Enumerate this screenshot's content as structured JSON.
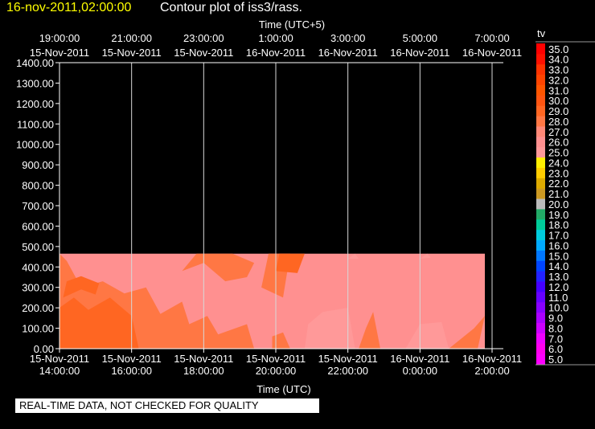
{
  "header": {
    "timestamp": "16-nov-2011,02:00:00",
    "title": "Contour plot of iss3/rass."
  },
  "footer_note": "REAL-TIME DATA, NOT CHECKED FOR QUALITY",
  "colors": {
    "background": "#000000",
    "axes": "#ffffff",
    "gridlines": "#d8d8d8",
    "header_timestamp": "#ffff00"
  },
  "chart_data": {
    "type": "heatmap",
    "title": "Contour plot of iss3/rass.",
    "top_axis_label": "Time (UTC+5)",
    "top_ticks": [
      {
        "time": "19:00:00",
        "date": "15-Nov-2011"
      },
      {
        "time": "21:00:00",
        "date": "15-Nov-2011"
      },
      {
        "time": "23:00:00",
        "date": "15-Nov-2011"
      },
      {
        "time": "1:00:00",
        "date": "16-Nov-2011"
      },
      {
        "time": "3:00:00",
        "date": "16-Nov-2011"
      },
      {
        "time": "5:00:00",
        "date": "16-Nov-2011"
      },
      {
        "time": "7:00:00",
        "date": "16-Nov-2011"
      }
    ],
    "xlabel": "Time (UTC)",
    "bottom_ticks": [
      {
        "date": "15-Nov-2011",
        "time": "14:00:00"
      },
      {
        "date": "15-Nov-2011",
        "time": "16:00:00"
      },
      {
        "date": "15-Nov-2011",
        "time": "18:00:00"
      },
      {
        "date": "15-Nov-2011",
        "time": "20:00:00"
      },
      {
        "date": "15-Nov-2011",
        "time": "22:00:00"
      },
      {
        "date": "16-Nov-2011",
        "time": "0:00:00"
      },
      {
        "date": "16-Nov-2011",
        "time": "2:00:00"
      }
    ],
    "x_range_hours": [
      14,
      26
    ],
    "data_end_hour": 25.8,
    "ylim": [
      0,
      1400
    ],
    "yticks": [
      "0.00",
      "100.00",
      "200.00",
      "300.00",
      "400.00",
      "500.00",
      "600.00",
      "700.00",
      "800.00",
      "900.00",
      "1000.00",
      "1100.00",
      "1200.00",
      "1300.00",
      "1400.00"
    ],
    "data_top_height": 465,
    "grid": "vertical lines at major time ticks",
    "colorbar": {
      "label": "tv",
      "levels": [
        "5.0",
        "6.0",
        "7.0",
        "8.0",
        "9.0",
        "10.0",
        "11.0",
        "12.0",
        "13.0",
        "14.0",
        "15.0",
        "16.0",
        "17.0",
        "18.0",
        "19.0",
        "20.0",
        "21.0",
        "22.0",
        "23.0",
        "24.0",
        "25.0",
        "26.0",
        "27.0",
        "28.0",
        "29.0",
        "30.0",
        "31.0",
        "32.0",
        "33.0",
        "34.0",
        "35.0"
      ],
      "colors": [
        "#ff00ff",
        "#ff00ee",
        "#ee00ff",
        "#cc00ff",
        "#aa00ff",
        "#8800ff",
        "#6600ff",
        "#4400ff",
        "#2222ff",
        "#0044ff",
        "#0077ff",
        "#00aaff",
        "#00ccdd",
        "#00cc99",
        "#22aa66",
        "#bbbbbb",
        "#cc9922",
        "#ddaa00",
        "#ffcc00",
        "#ffee00",
        "#ff9999",
        "#ff9090",
        "#ff8877",
        "#ff7744",
        "#ff6622",
        "#ff5511",
        "#ff5500",
        "#ff4400",
        "#ff3300",
        "#ff1100",
        "#ff0000"
      ]
    },
    "regions": [
      {
        "value": 26,
        "points": [
          [
            14,
            0
          ],
          [
            25.8,
            0
          ],
          [
            25.8,
            465
          ],
          [
            14,
            465
          ]
        ]
      },
      {
        "value": 28,
        "points": [
          [
            14,
            0
          ],
          [
            19.4,
            0
          ],
          [
            19.2,
            120
          ],
          [
            18.4,
            70
          ],
          [
            18.1,
            160
          ],
          [
            17.6,
            120
          ],
          [
            17.4,
            230
          ],
          [
            16.8,
            170
          ],
          [
            16.4,
            300
          ],
          [
            15.8,
            270
          ],
          [
            15.2,
            330
          ],
          [
            14.6,
            300
          ],
          [
            14.2,
            430
          ],
          [
            14,
            470
          ]
        ]
      },
      {
        "value": 28,
        "points": [
          [
            17.4,
            380
          ],
          [
            18,
            420
          ],
          [
            18.6,
            330
          ],
          [
            19.2,
            350
          ],
          [
            19.4,
            420
          ],
          [
            18.8,
            465
          ],
          [
            17.8,
            465
          ]
        ]
      },
      {
        "value": 28,
        "points": [
          [
            19.6,
            300
          ],
          [
            20.2,
            250
          ],
          [
            20.4,
            465
          ],
          [
            19.8,
            465
          ]
        ]
      },
      {
        "value": 28,
        "points": [
          [
            19.9,
            0
          ],
          [
            20.4,
            0
          ],
          [
            20.2,
            80
          ],
          [
            19.9,
            60
          ]
        ]
      },
      {
        "value": 29,
        "points": [
          [
            14,
            0
          ],
          [
            16.2,
            0
          ],
          [
            16.0,
            160
          ],
          [
            15.4,
            250
          ],
          [
            14.8,
            190
          ],
          [
            14.4,
            250
          ],
          [
            14,
            200
          ]
        ]
      },
      {
        "value": 29,
        "points": [
          [
            14.1,
            250
          ],
          [
            14.6,
            290
          ],
          [
            15.0,
            265
          ],
          [
            15.1,
            320
          ],
          [
            14.6,
            355
          ],
          [
            14.2,
            330
          ]
        ]
      },
      {
        "value": 28,
        "points": [
          [
            22.3,
            0
          ],
          [
            22.9,
            0
          ],
          [
            22.7,
            180
          ],
          [
            22.5,
            100
          ]
        ]
      },
      {
        "value": 28,
        "points": [
          [
            24.8,
            0
          ],
          [
            25.6,
            0
          ],
          [
            25.8,
            160
          ],
          [
            25.5,
            100
          ]
        ]
      },
      {
        "value": 29,
        "points": [
          [
            20.0,
            380
          ],
          [
            20.6,
            370
          ],
          [
            20.8,
            465
          ],
          [
            20.1,
            465
          ]
        ]
      },
      {
        "value": 24,
        "points": [
          [
            21.0,
            0
          ],
          [
            22.0,
            0
          ],
          [
            21.8,
            150
          ],
          [
            21.3,
            130
          ],
          [
            21.0,
            90
          ]
        ]
      },
      {
        "value": 24,
        "points": [
          [
            23.9,
            0
          ],
          [
            24.6,
            0
          ],
          [
            24.6,
            80
          ],
          [
            24.2,
            90
          ]
        ]
      },
      {
        "value": 25,
        "points": [
          [
            20.8,
            0
          ],
          [
            22.2,
            0
          ],
          [
            22.0,
            200
          ],
          [
            21.3,
            180
          ],
          [
            20.9,
            120
          ]
        ]
      },
      {
        "value": 25,
        "points": [
          [
            23.6,
            0
          ],
          [
            24.8,
            0
          ],
          [
            24.6,
            130
          ],
          [
            24.0,
            120
          ]
        ]
      },
      {
        "value": 25,
        "points": [
          [
            22.0,
            440
          ],
          [
            22.3,
            440
          ],
          [
            22.2,
            465
          ]
        ]
      },
      {
        "value": 25,
        "points": [
          [
            24.0,
            440
          ],
          [
            24.3,
            445
          ],
          [
            24.2,
            465
          ]
        ]
      }
    ]
  }
}
